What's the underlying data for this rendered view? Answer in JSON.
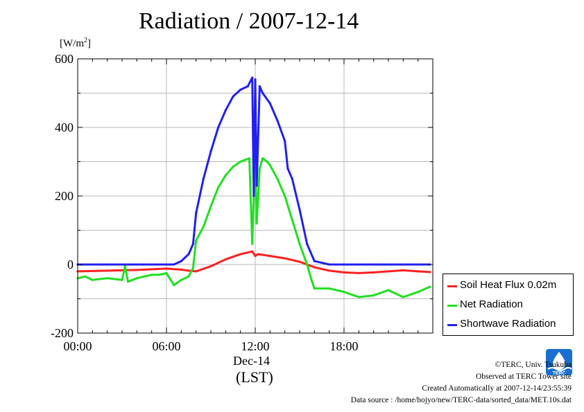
{
  "title": "Radiation / 2007-12-14",
  "y_unit": "[W/m",
  "y_unit_sup": "2",
  "y_unit_close": "]",
  "x_date_label": "Dec-14",
  "x_zone_label": "(LST)",
  "credits": {
    "copyright": "©TERC, Univ. Tsukuba",
    "site": "Observed at TERC Tower site",
    "created": "Created Automatically at 2007-12-14/23:55:39",
    "source": "Data source : /home/hojyo/new/TERC-data/sorted_data/MET.10s.dat"
  },
  "logo_text": "TERC",
  "chart_data": {
    "type": "line",
    "title": "Radiation / 2007-12-14",
    "xlabel": "Dec-14 (LST)",
    "ylabel": "[W/m2]",
    "x_unit": "hour (LST)",
    "xlim": [
      0,
      24
    ],
    "ylim": [
      -200,
      600
    ],
    "x_ticks": [
      0,
      6,
      12,
      18
    ],
    "x_tick_labels": [
      "00:00",
      "06:00",
      "12:00",
      "18:00"
    ],
    "y_ticks": [
      -200,
      0,
      200,
      400,
      600
    ],
    "y_tick_labels": [
      "-200",
      "0",
      "200",
      "400",
      "600"
    ],
    "grid": true,
    "legend_position": "bottom-right, outside plot",
    "series": [
      {
        "name": "Soil Heat Flux 0.02m",
        "color": "#ff2020",
        "x": [
          0,
          2,
          4,
          5,
          6,
          7,
          7.5,
          8,
          9,
          10,
          11,
          11.8,
          12,
          12.2,
          13,
          14,
          15,
          16,
          17,
          18,
          19,
          20,
          21,
          22,
          23,
          23.8
        ],
        "y": [
          -20,
          -18,
          -16,
          -14,
          -12,
          -15,
          -18,
          -20,
          -5,
          15,
          30,
          38,
          25,
          30,
          25,
          18,
          8,
          -8,
          -18,
          -23,
          -25,
          -23,
          -20,
          -17,
          -20,
          -22
        ]
      },
      {
        "name": "Net Radiation",
        "color": "#20e020",
        "x": [
          0,
          0.5,
          1,
          2,
          3,
          3.2,
          3.4,
          4,
          4.5,
          5,
          5.5,
          6,
          6.5,
          7,
          7.5,
          7.8,
          8,
          8.5,
          9,
          9.5,
          10,
          10.5,
          11,
          11.3,
          11.6,
          11.8,
          12,
          12.1,
          12.3,
          12.5,
          12.8,
          13,
          13.5,
          14,
          14.5,
          15,
          15.5,
          15.8,
          16,
          17,
          18,
          19,
          20,
          21,
          22,
          23,
          23.8
        ],
        "y": [
          -40,
          -35,
          -45,
          -40,
          -45,
          -5,
          -50,
          -40,
          -35,
          -30,
          -30,
          -25,
          -60,
          -45,
          -35,
          -10,
          70,
          110,
          170,
          225,
          260,
          285,
          300,
          305,
          310,
          60,
          330,
          120,
          280,
          310,
          300,
          290,
          250,
          200,
          130,
          60,
          0,
          -45,
          -70,
          -70,
          -80,
          -95,
          -90,
          -75,
          -95,
          -80,
          -65
        ]
      },
      {
        "name": "Shortwave Radiation",
        "color": "#2020f0",
        "x": [
          0,
          2,
          4,
          6,
          6.5,
          7,
          7.5,
          7.8,
          8,
          8.5,
          9,
          9.5,
          10,
          10.5,
          11,
          11.5,
          11.8,
          11.9,
          12,
          12.1,
          12.3,
          12.5,
          13,
          13.5,
          14,
          14.2,
          14.5,
          15,
          15.5,
          16,
          17,
          18,
          20,
          22,
          23.8
        ],
        "y": [
          0,
          0,
          0,
          0,
          0,
          10,
          30,
          60,
          150,
          250,
          330,
          400,
          450,
          490,
          510,
          520,
          545,
          200,
          540,
          230,
          520,
          500,
          470,
          420,
          360,
          280,
          250,
          160,
          60,
          10,
          0,
          0,
          0,
          0,
          0
        ]
      }
    ]
  }
}
